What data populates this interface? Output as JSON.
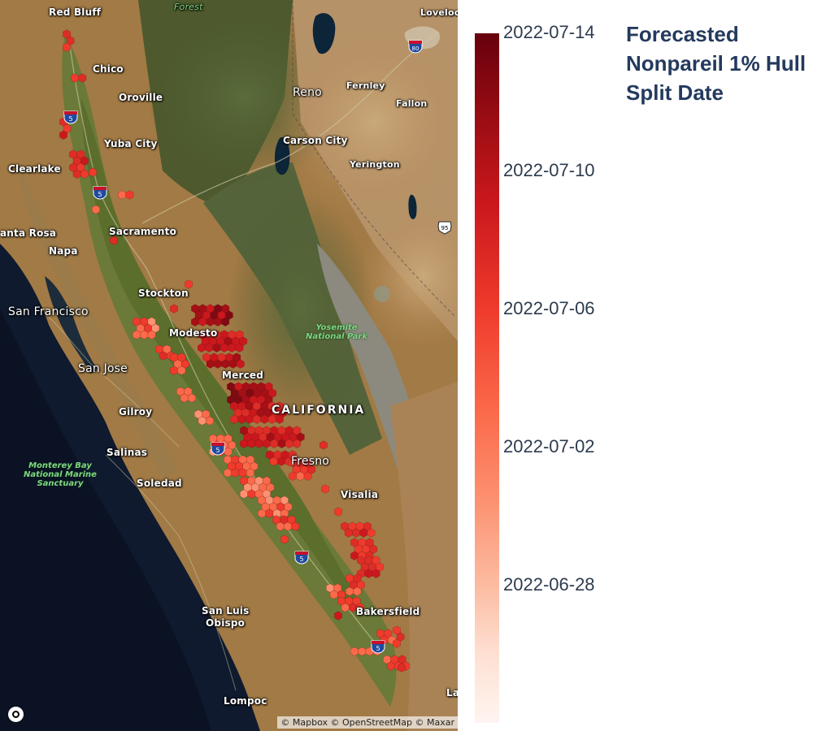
{
  "title": "Forecasted Nonpareil 1% Hull Split Date",
  "colorbar": {
    "ticks": [
      "2022-07-14",
      "2022-07-10",
      "2022-07-06",
      "2022-07-02",
      "2022-06-28"
    ],
    "colors": [
      "#67000d",
      "#a50f15",
      "#cb181d",
      "#ef3b2c",
      "#fb6a4a",
      "#fc9272",
      "#fcbba1",
      "#fee0d2",
      "#fff5f0"
    ]
  },
  "map": {
    "attribution": "© Mapbox © OpenStreetMap © Maxar",
    "logo_icon": "mapbox-logo-icon",
    "cities": {
      "red_bluff": "Red Bluff",
      "chico": "Chico",
      "oroville": "Oroville",
      "yuba_city": "Yuba City",
      "clearlake": "Clearlake",
      "santa_rosa": "anta Rosa",
      "napa": "Napa",
      "sacramento": "Sacramento",
      "stockton": "Stockton",
      "san_francisco": "San Francisco",
      "modesto": "Modesto",
      "san_jose": "San Jose",
      "merced": "Merced",
      "gilroy": "Gilroy",
      "salinas": "Salinas",
      "soledad": "Soledad",
      "fresno": "Fresno",
      "visalia": "Visalia",
      "bakersfield": "Bakersfield",
      "san_luis_obispo_1": "San Luis",
      "san_luis_obispo_2": "Obispo",
      "lompoc": "Lompoc",
      "reno": "Reno",
      "fernley": "Fernley",
      "fallon": "Fallon",
      "carson_city": "Carson City",
      "yerington": "Yerington",
      "loveock": "Lovelock",
      "la": "La",
      "forest": "Forest",
      "california": "CALIFORNIA"
    },
    "parks": {
      "yosemite": [
        "Yosemite",
        "National Park"
      ],
      "monterey": [
        "Monterey Bay",
        "National Marine",
        "Sanctuary"
      ]
    },
    "shields": [
      "5",
      "5",
      "5",
      "5",
      "5",
      "80",
      "95"
    ]
  }
}
